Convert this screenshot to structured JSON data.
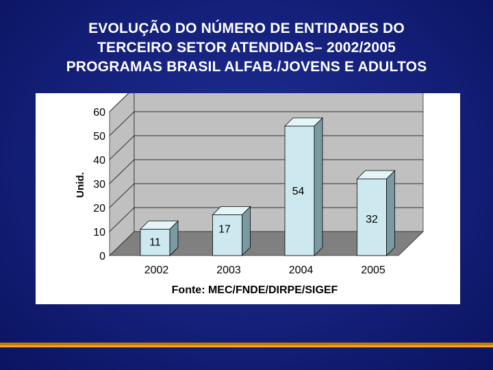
{
  "title_lines": [
    "EVOLUÇÃO DO NÚMERO DE ENTIDADES DO",
    "TERCEIRO SETOR ATENDIDAS– 2002/2005",
    "PROGRAMAS BRASIL ALFAB./JOVENS E ADULTOS"
  ],
  "colors": {
    "background": "#14207a",
    "bar_front": "#cde9ef",
    "bar_side": "#7a9aa2",
    "bar_top": "#e4f5f8",
    "wall": "#c0c0c0",
    "floor": "#808080",
    "accent_rule": "#f5a623"
  },
  "chart_data": {
    "type": "bar",
    "style": "3d-column",
    "categories": [
      "2002",
      "2003",
      "2004",
      "2005"
    ],
    "values": [
      11,
      17,
      54,
      32
    ],
    "data_labels": [
      "11",
      "17",
      "54",
      "32"
    ],
    "ylabel": "Unid.",
    "xlabel": "",
    "ylim": [
      0,
      60
    ],
    "yticks": [
      "0",
      "10",
      "20",
      "30",
      "40",
      "50",
      "60"
    ],
    "grid": true,
    "source_note": "Fonte: MEC/FNDE/DIRPE/SIGEF"
  }
}
